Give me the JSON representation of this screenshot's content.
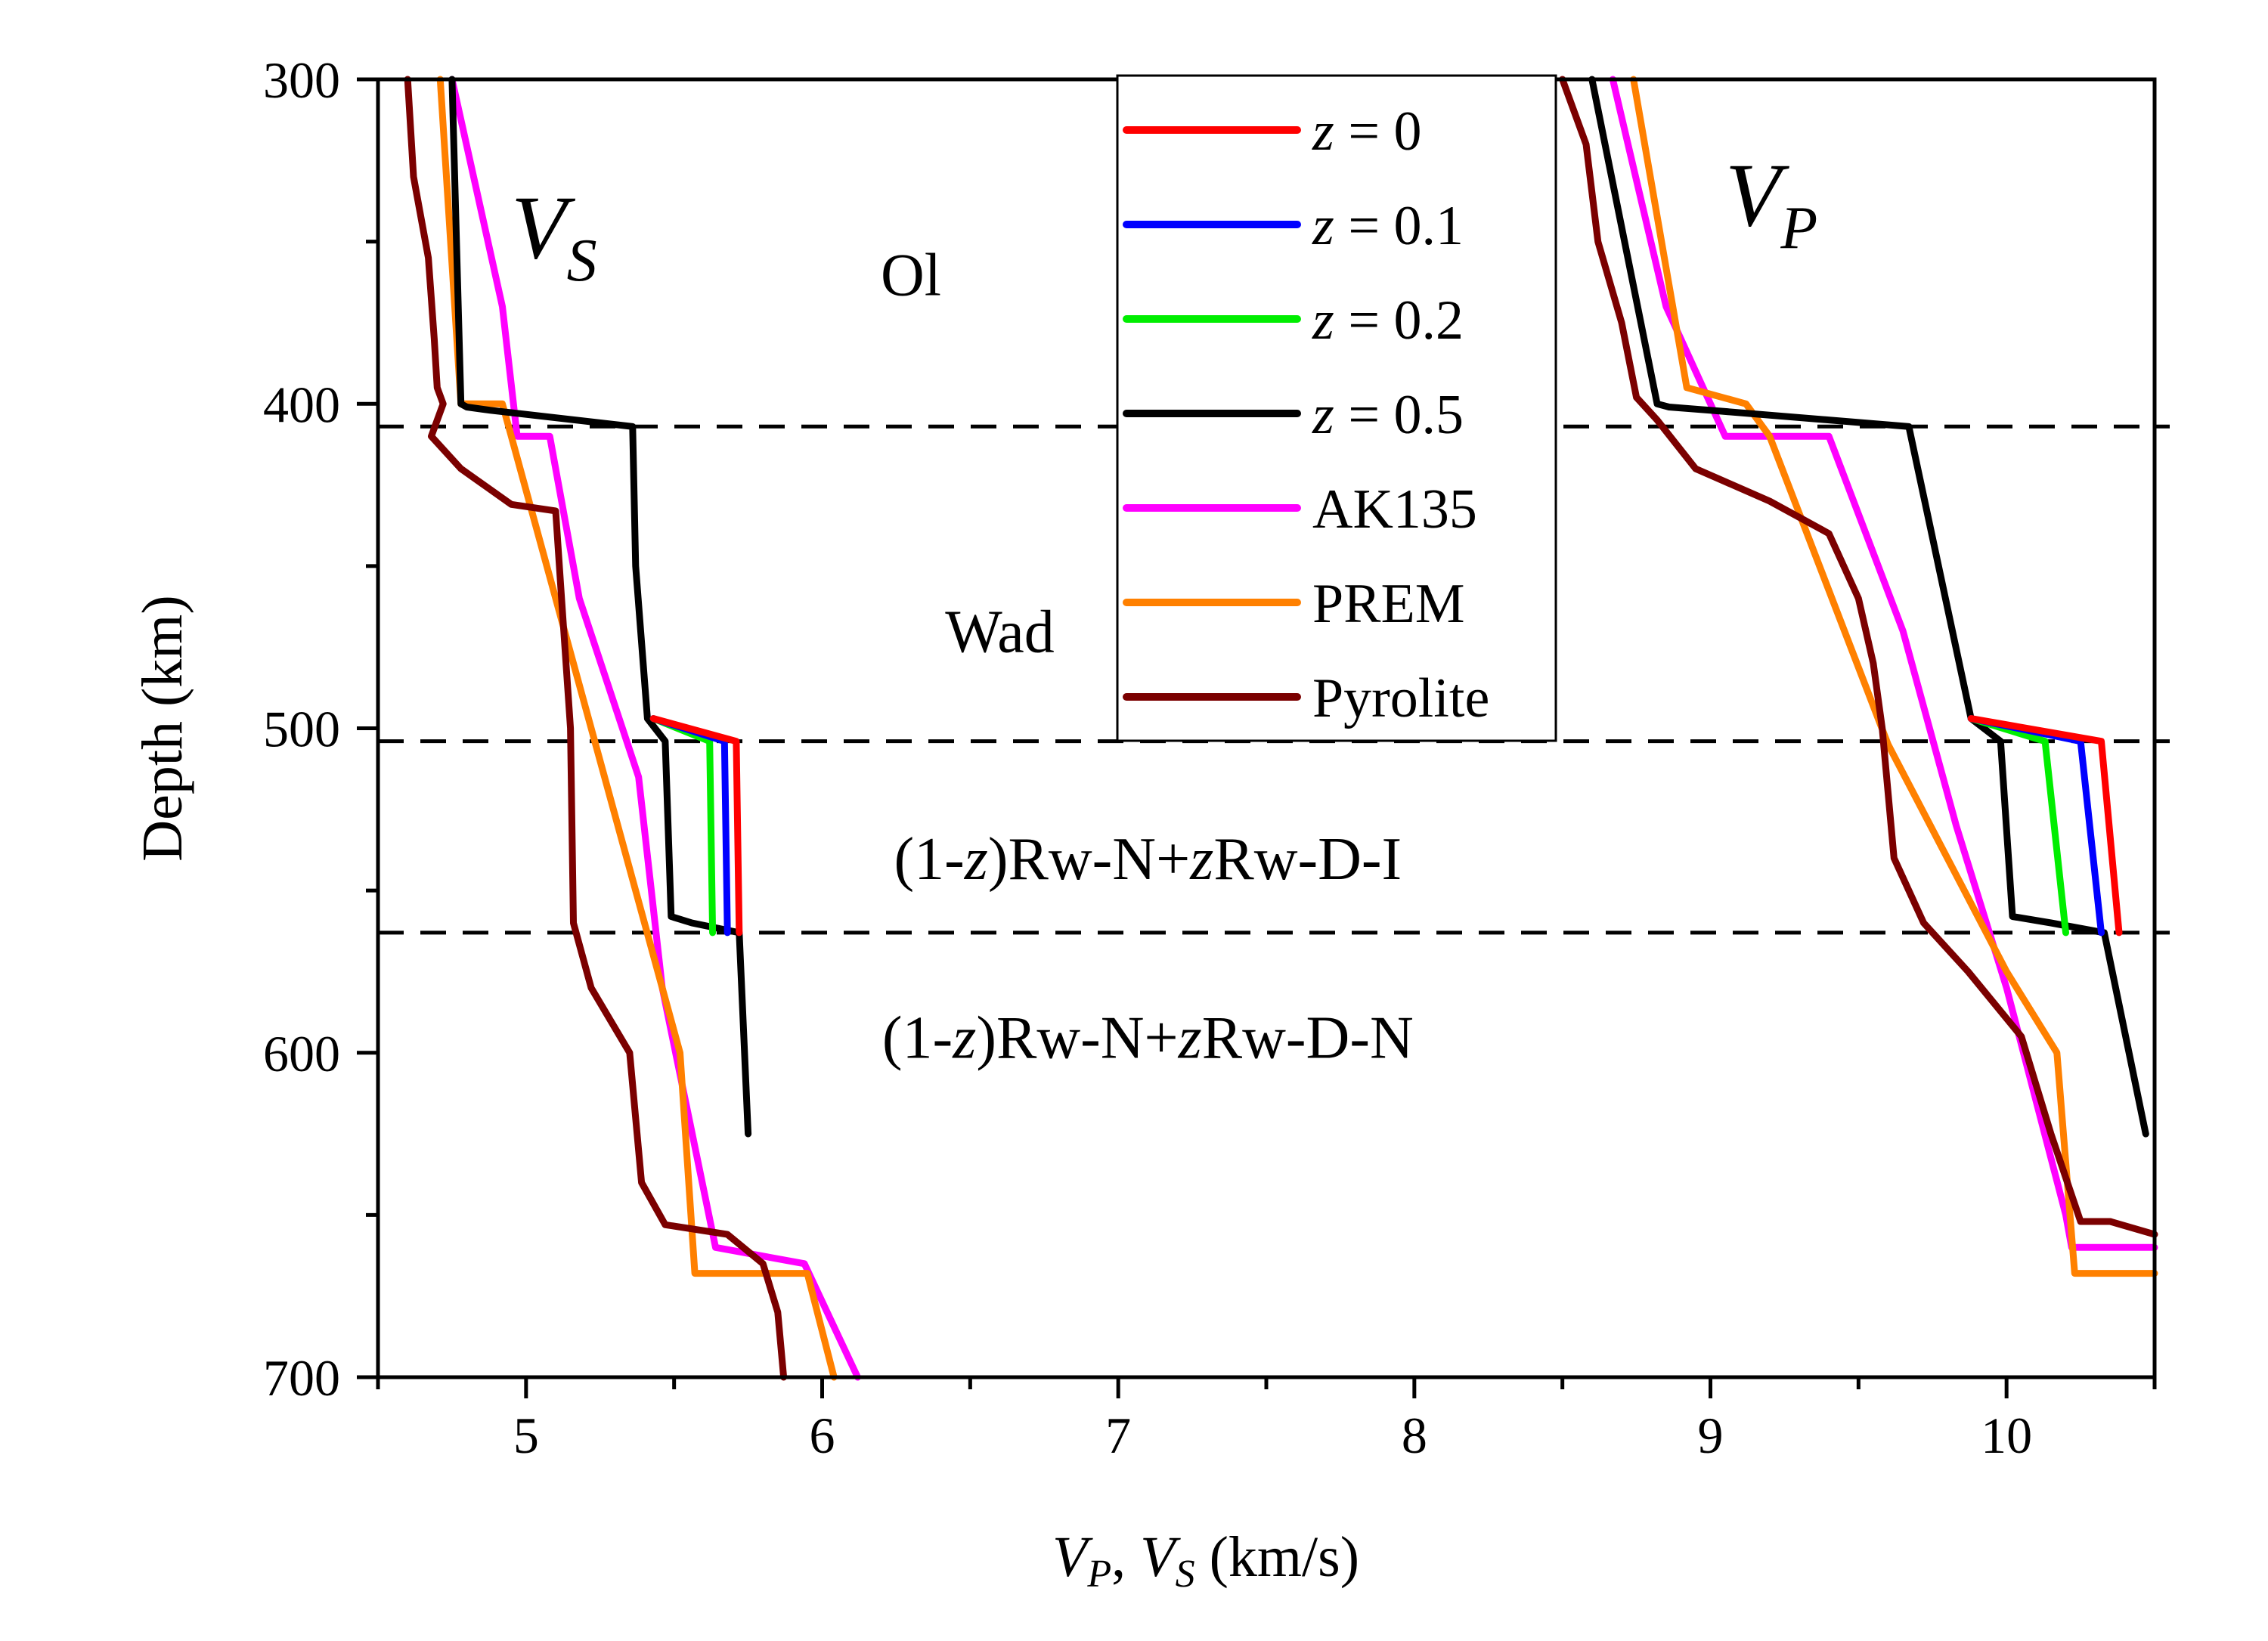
{
  "chart_data": {
    "type": "line",
    "title": "",
    "xlabel": "V_P, V_S (km/s)",
    "xlabel_parts": {
      "vp": "V",
      "vp_sub": "P",
      "sep": ", ",
      "vs": "V",
      "vs_sub": "S",
      "unit": " (km/s)"
    },
    "ylabel": "Depth (km)",
    "xlim": [
      4.5,
      10.5
    ],
    "ylim": [
      700,
      300
    ],
    "xticks": [
      5,
      6,
      7,
      8,
      9,
      10
    ],
    "yticks": [
      300,
      400,
      500,
      600,
      700
    ],
    "panel_labels": {
      "vs": {
        "main": "V",
        "sub": "S"
      },
      "vp": {
        "main": "V",
        "sub": "P"
      }
    },
    "annotations": [
      {
        "text": "Ol",
        "x": 6.3,
        "y": 360
      },
      {
        "text": "Wad",
        "x": 6.6,
        "y": 470
      },
      {
        "text": "(1-z)Rw-N+zRw-D-I",
        "x": 7.1,
        "y": 540
      },
      {
        "text": "(1-z)Rw-N+zRw-D-N",
        "x": 7.1,
        "y": 595
      }
    ],
    "reference_lines": [
      {
        "name": "410-boundary",
        "y": 407,
        "style": "dashed"
      },
      {
        "name": "500-boundary",
        "y": 504,
        "style": "dashed"
      },
      {
        "name": "560-boundary",
        "y": 563,
        "style": "dashed"
      }
    ],
    "legend": {
      "placement": "top-center",
      "entries": [
        {
          "label": "z = 0",
          "color": "#ff0000"
        },
        {
          "label": "z = 0.1",
          "color": "#0000ff"
        },
        {
          "label": "z = 0.2",
          "color": "#00ee00"
        },
        {
          "label": "z = 0.5",
          "color": "#000000"
        },
        {
          "label": "AK135",
          "color": "#ff00ff"
        },
        {
          "label": "PREM",
          "color": "#ff8000"
        },
        {
          "label": "Pyrolite",
          "color": "#7b0000"
        }
      ]
    },
    "series": [
      {
        "name": "z = 0 (Vs)",
        "color": "#ff0000",
        "points": [
          [
            5.43,
            497
          ],
          [
            5.71,
            504
          ],
          [
            5.72,
            563
          ]
        ]
      },
      {
        "name": "z = 0.1 (Vs)",
        "color": "#0000ff",
        "points": [
          [
            5.43,
            497
          ],
          [
            5.67,
            504
          ],
          [
            5.68,
            563
          ]
        ]
      },
      {
        "name": "z = 0.2 (Vs)",
        "color": "#00ee00",
        "points": [
          [
            5.43,
            497
          ],
          [
            5.62,
            504
          ],
          [
            5.63,
            563
          ]
        ]
      },
      {
        "name": "z = 0.5 (Vs)",
        "color": "#000000",
        "points": [
          [
            4.75,
            300
          ],
          [
            4.78,
            400
          ],
          [
            4.8,
            401
          ],
          [
            4.88,
            402
          ],
          [
            5.36,
            407
          ],
          [
            5.37,
            450
          ],
          [
            5.41,
            497
          ],
          [
            5.47,
            504
          ],
          [
            5.49,
            558
          ],
          [
            5.56,
            560
          ],
          [
            5.72,
            563
          ],
          [
            5.75,
            625
          ]
        ]
      },
      {
        "name": "AK135 (Vs)",
        "color": "#ff00ff",
        "points": [
          [
            4.75,
            300
          ],
          [
            4.92,
            370
          ],
          [
            4.97,
            410
          ],
          [
            5.08,
            410
          ],
          [
            5.18,
            460
          ],
          [
            5.38,
            515
          ],
          [
            5.46,
            580
          ],
          [
            5.64,
            660
          ],
          [
            5.94,
            665
          ],
          [
            6.12,
            700
          ]
        ]
      },
      {
        "name": "PREM (Vs)",
        "color": "#ff8000",
        "points": [
          [
            4.71,
            300
          ],
          [
            4.78,
            400
          ],
          [
            4.92,
            400
          ],
          [
            4.95,
            410
          ],
          [
            5.52,
            600
          ],
          [
            5.57,
            668
          ],
          [
            5.95,
            668
          ],
          [
            6.04,
            700
          ]
        ]
      },
      {
        "name": "Pyrolite (Vs)",
        "color": "#7b0000",
        "points": [
          [
            4.6,
            300
          ],
          [
            4.62,
            330
          ],
          [
            4.67,
            355
          ],
          [
            4.69,
            380
          ],
          [
            4.7,
            395
          ],
          [
            4.72,
            400
          ],
          [
            4.68,
            410
          ],
          [
            4.78,
            420
          ],
          [
            4.95,
            431
          ],
          [
            5.1,
            433
          ],
          [
            5.12,
            460
          ],
          [
            5.15,
            500
          ],
          [
            5.16,
            560
          ],
          [
            5.22,
            580
          ],
          [
            5.35,
            600
          ],
          [
            5.39,
            640
          ],
          [
            5.47,
            653
          ],
          [
            5.68,
            656
          ],
          [
            5.8,
            665
          ],
          [
            5.85,
            680
          ],
          [
            5.87,
            700
          ]
        ]
      },
      {
        "name": "z = 0 (Vp)",
        "color": "#ff0000",
        "points": [
          [
            9.88,
            497
          ],
          [
            10.32,
            504
          ],
          [
            10.38,
            563
          ]
        ]
      },
      {
        "name": "z = 0.1 (Vp)",
        "color": "#0000ff",
        "points": [
          [
            9.88,
            497
          ],
          [
            10.25,
            504
          ],
          [
            10.32,
            563
          ]
        ]
      },
      {
        "name": "z = 0.2 (Vp)",
        "color": "#00ee00",
        "points": [
          [
            9.88,
            497
          ],
          [
            10.13,
            504
          ],
          [
            10.2,
            563
          ]
        ]
      },
      {
        "name": "z = 0.5 (Vp)",
        "color": "#000000",
        "points": [
          [
            8.6,
            300
          ],
          [
            8.82,
            400
          ],
          [
            8.86,
            401
          ],
          [
            9.0,
            402
          ],
          [
            9.67,
            407
          ],
          [
            9.88,
            497
          ],
          [
            9.98,
            504
          ],
          [
            10.02,
            558
          ],
          [
            10.15,
            560
          ],
          [
            10.33,
            563
          ],
          [
            10.47,
            625
          ]
        ]
      },
      {
        "name": "AK135 (Vp)",
        "color": "#ff00ff",
        "points": [
          [
            8.67,
            300
          ],
          [
            8.85,
            370
          ],
          [
            9.05,
            410
          ],
          [
            9.4,
            410
          ],
          [
            9.65,
            470
          ],
          [
            9.83,
            530
          ],
          [
            10.0,
            580
          ],
          [
            10.2,
            650
          ],
          [
            10.22,
            660
          ],
          [
            10.5,
            660
          ]
        ]
      },
      {
        "name": "PREM (Vp)",
        "color": "#ff8000",
        "points": [
          [
            8.74,
            300
          ],
          [
            8.92,
            395
          ],
          [
            9.12,
            400
          ],
          [
            9.2,
            410
          ],
          [
            9.6,
            505
          ],
          [
            10.0,
            575
          ],
          [
            10.17,
            600
          ],
          [
            10.23,
            668
          ],
          [
            10.5,
            668
          ]
        ]
      },
      {
        "name": "Pyrolite (Vp)",
        "color": "#7b0000",
        "points": [
          [
            8.5,
            300
          ],
          [
            8.58,
            320
          ],
          [
            8.62,
            350
          ],
          [
            8.7,
            375
          ],
          [
            8.75,
            398
          ],
          [
            8.82,
            405
          ],
          [
            8.95,
            420
          ],
          [
            9.2,
            430
          ],
          [
            9.4,
            440
          ],
          [
            9.5,
            460
          ],
          [
            9.55,
            480
          ],
          [
            9.58,
            500
          ],
          [
            9.62,
            540
          ],
          [
            9.72,
            560
          ],
          [
            9.87,
            575
          ],
          [
            10.05,
            595
          ],
          [
            10.15,
            625
          ],
          [
            10.25,
            652
          ],
          [
            10.35,
            652
          ],
          [
            10.5,
            656
          ]
        ]
      }
    ]
  }
}
